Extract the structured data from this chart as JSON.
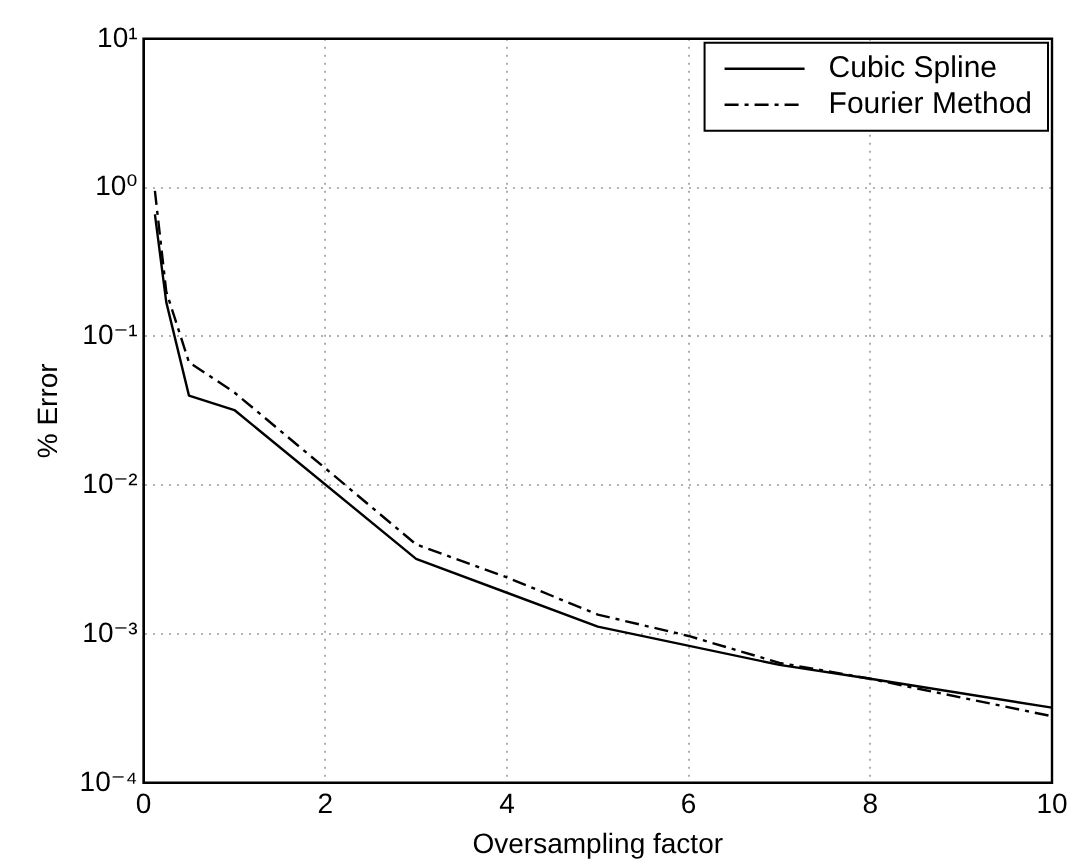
{
  "chart_data": {
    "type": "line",
    "xlabel": "Oversampling factor",
    "ylabel": "% Error",
    "log": "y",
    "grid": true,
    "legend": "top right",
    "marker": "none",
    "xlim": [
      0,
      10
    ],
    "xticks": [
      0,
      2,
      4,
      6,
      8,
      10
    ],
    "ylim": [
      0.0001,
      10
    ],
    "yticks": [
      {
        "value": 0.0001,
        "label": "10⁻⁴"
      },
      {
        "value": 0.001,
        "label": "10⁻³"
      },
      {
        "value": 0.01,
        "label": "10⁻²"
      },
      {
        "value": 0.1,
        "label": "10⁻¹"
      },
      {
        "value": 1,
        "label": "10⁰"
      },
      {
        "value": 10,
        "label": "10¹"
      }
    ],
    "series": [
      {
        "name": "Cubic Spline",
        "color": "#000000",
        "line_style": "solid",
        "x": [
          0.125,
          0.25,
          0.5,
          1,
          3,
          5,
          7,
          8,
          10
        ],
        "values": [
          0.66,
          0.17,
          0.04,
          0.032,
          0.0032,
          0.00112,
          0.00062,
          0.0005,
          0.00032
        ]
      },
      {
        "name": "Fourier Method",
        "color": "#000000",
        "line_style": "dashed",
        "x": [
          0.125,
          0.25,
          0.5,
          1,
          2,
          3,
          4,
          5,
          6,
          7,
          8,
          10
        ],
        "values": [
          0.95,
          0.2,
          0.067,
          0.042,
          0.013,
          0.004,
          0.0024,
          0.00135,
          0.00097,
          0.00064,
          0.0005,
          0.00028
        ]
      }
    ]
  }
}
